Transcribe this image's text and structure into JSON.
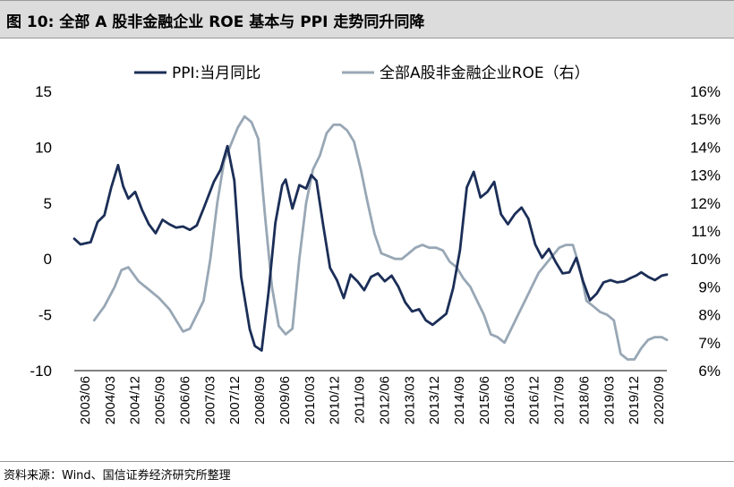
{
  "title": "图 10:  全部 A 股非金融企业 ROE 基本与 PPI 走势同升同降",
  "source": "资料来源：Wind、国信证券经济研究所整理",
  "colors": {
    "ppi": "#1b2e57",
    "roe": "#98a7b5",
    "title_bg": "#dcdcdc"
  },
  "chart_data": {
    "type": "line",
    "title": "全部 A 股非金融企业 ROE 基本与 PPI 走势同升同降",
    "x_tick_labels": [
      "2003/06",
      "2004/03",
      "2004/12",
      "2005/09",
      "2006/06",
      "2007/03",
      "2007/12",
      "2008/09",
      "2009/06",
      "2010/03",
      "2010/12",
      "2011/09",
      "2012/06",
      "2013/03",
      "2013/12",
      "2014/09",
      "2015/06",
      "2016/03",
      "2016/12",
      "2017/09",
      "2018/06",
      "2019/03",
      "2019/12",
      "2020/09"
    ],
    "y_left": {
      "min": -10,
      "max": 15,
      "ticks": [
        15,
        10,
        5,
        0,
        -5,
        -10
      ],
      "tick_labels": [
        "15",
        "10",
        "5",
        "0",
        "-5",
        "-10"
      ]
    },
    "y_right": {
      "min": 6,
      "max": 16,
      "ticks": [
        16,
        15,
        14,
        13,
        12,
        11,
        10,
        9,
        8,
        7,
        6
      ],
      "tick_labels": [
        "16%",
        "15%",
        "14%",
        "13%",
        "12%",
        "11%",
        "10%",
        "9%",
        "8%",
        "7%",
        "6%"
      ]
    },
    "legend": {
      "position": "top",
      "items": [
        {
          "key": "ppi",
          "label": "PPI:当月同比"
        },
        {
          "key": "roe",
          "label": "全部A股非金融企业ROE（右）"
        }
      ]
    },
    "series": [
      {
        "name": "PPI:当月同比",
        "axis": "left",
        "x": [
          2003.42,
          2003.6,
          2003.9,
          2004.1,
          2004.3,
          2004.5,
          2004.7,
          2004.85,
          2005.0,
          2005.2,
          2005.4,
          2005.6,
          2005.8,
          2006.0,
          2006.2,
          2006.4,
          2006.6,
          2006.8,
          2007.0,
          2007.2,
          2007.5,
          2007.7,
          2007.9,
          2008.1,
          2008.3,
          2008.55,
          2008.7,
          2008.9,
          2009.1,
          2009.3,
          2009.5,
          2009.6,
          2009.8,
          2010.0,
          2010.2,
          2010.35,
          2010.5,
          2010.7,
          2010.9,
          2011.1,
          2011.3,
          2011.5,
          2011.7,
          2011.9,
          2012.1,
          2012.3,
          2012.5,
          2012.7,
          2012.9,
          2013.1,
          2013.3,
          2013.5,
          2013.7,
          2013.9,
          2014.1,
          2014.3,
          2014.5,
          2014.7,
          2014.9,
          2015.1,
          2015.3,
          2015.5,
          2015.7,
          2015.9,
          2016.1,
          2016.3,
          2016.5,
          2016.7,
          2016.9,
          2017.1,
          2017.3,
          2017.5,
          2017.7,
          2017.9,
          2018.1,
          2018.3,
          2018.5,
          2018.7,
          2018.9,
          2019.1,
          2019.3,
          2019.5,
          2019.7,
          2019.85,
          2020.0,
          2020.2,
          2020.4,
          2020.6,
          2020.75
        ],
        "values": [
          1.8,
          1.3,
          1.5,
          3.3,
          3.9,
          6.4,
          8.4,
          6.5,
          5.4,
          6.0,
          4.4,
          3.1,
          2.3,
          3.5,
          3.1,
          2.8,
          2.9,
          2.6,
          3.0,
          4.5,
          6.9,
          8.0,
          10.1,
          7.0,
          -1.6,
          -6.3,
          -7.8,
          -8.2,
          -3.0,
          3.2,
          6.6,
          7.1,
          4.5,
          6.6,
          6.3,
          7.5,
          7.0,
          3.0,
          -0.8,
          -1.9,
          -3.5,
          -1.4,
          -2.0,
          -2.8,
          -1.6,
          -1.3,
          -2.0,
          -1.5,
          -2.5,
          -3.9,
          -4.7,
          -4.5,
          -5.5,
          -5.9,
          -5.4,
          -4.9,
          -2.6,
          0.8,
          6.4,
          7.8,
          5.5,
          6.0,
          6.9,
          4.0,
          3.1,
          4.0,
          4.6,
          3.6,
          1.3,
          0.1,
          0.9,
          -0.3,
          -1.3,
          -1.2,
          0.1,
          -2.0,
          -3.7,
          -3.1,
          -2.1,
          -1.9,
          -2.1,
          -2.0,
          -1.7,
          -1.5,
          -1.2,
          -1.6,
          -1.9,
          -1.5,
          -1.4
        ]
      },
      {
        "name": "全部A股非金融企业ROE（右）",
        "axis": "right",
        "x": [
          2004.0,
          2004.3,
          2004.6,
          2004.8,
          2005.0,
          2005.3,
          2005.6,
          2005.9,
          2006.2,
          2006.4,
          2006.6,
          2006.8,
          2007.0,
          2007.2,
          2007.4,
          2007.6,
          2007.8,
          2008.0,
          2008.2,
          2008.4,
          2008.6,
          2008.8,
          2009.0,
          2009.2,
          2009.4,
          2009.6,
          2009.8,
          2010.0,
          2010.2,
          2010.4,
          2010.6,
          2010.8,
          2011.0,
          2011.2,
          2011.4,
          2011.6,
          2011.8,
          2012.0,
          2012.2,
          2012.4,
          2012.6,
          2012.8,
          2013.0,
          2013.2,
          2013.4,
          2013.6,
          2013.8,
          2014.0,
          2014.2,
          2014.4,
          2014.6,
          2014.8,
          2015.0,
          2015.2,
          2015.4,
          2015.6,
          2015.8,
          2016.0,
          2016.2,
          2016.4,
          2016.6,
          2016.8,
          2017.0,
          2017.2,
          2017.4,
          2017.6,
          2017.8,
          2018.0,
          2018.2,
          2018.4,
          2018.6,
          2018.8,
          2019.0,
          2019.2,
          2019.4,
          2019.6,
          2019.8,
          2020.0,
          2020.2,
          2020.4,
          2020.6,
          2020.75
        ],
        "values": [
          7.8,
          8.3,
          9.0,
          9.6,
          9.7,
          9.2,
          8.9,
          8.6,
          8.2,
          7.8,
          7.4,
          7.5,
          8.0,
          8.5,
          10.0,
          12.0,
          13.5,
          14.1,
          14.7,
          15.1,
          14.9,
          14.3,
          11.5,
          9.0,
          7.6,
          7.3,
          7.5,
          10.0,
          12.0,
          13.2,
          13.7,
          14.5,
          14.8,
          14.8,
          14.6,
          14.2,
          13.2,
          12.0,
          10.9,
          10.2,
          10.1,
          10.0,
          10.0,
          10.2,
          10.4,
          10.5,
          10.4,
          10.4,
          10.3,
          9.9,
          9.7,
          9.3,
          9.0,
          8.5,
          8.0,
          7.3,
          7.2,
          7.0,
          7.5,
          8.0,
          8.5,
          9.0,
          9.5,
          9.8,
          10.1,
          10.4,
          10.5,
          10.5,
          9.7,
          8.5,
          8.3,
          8.1,
          8.0,
          7.8,
          6.6,
          6.4,
          6.4,
          6.8,
          7.1,
          7.2,
          7.2,
          7.1
        ]
      }
    ]
  }
}
